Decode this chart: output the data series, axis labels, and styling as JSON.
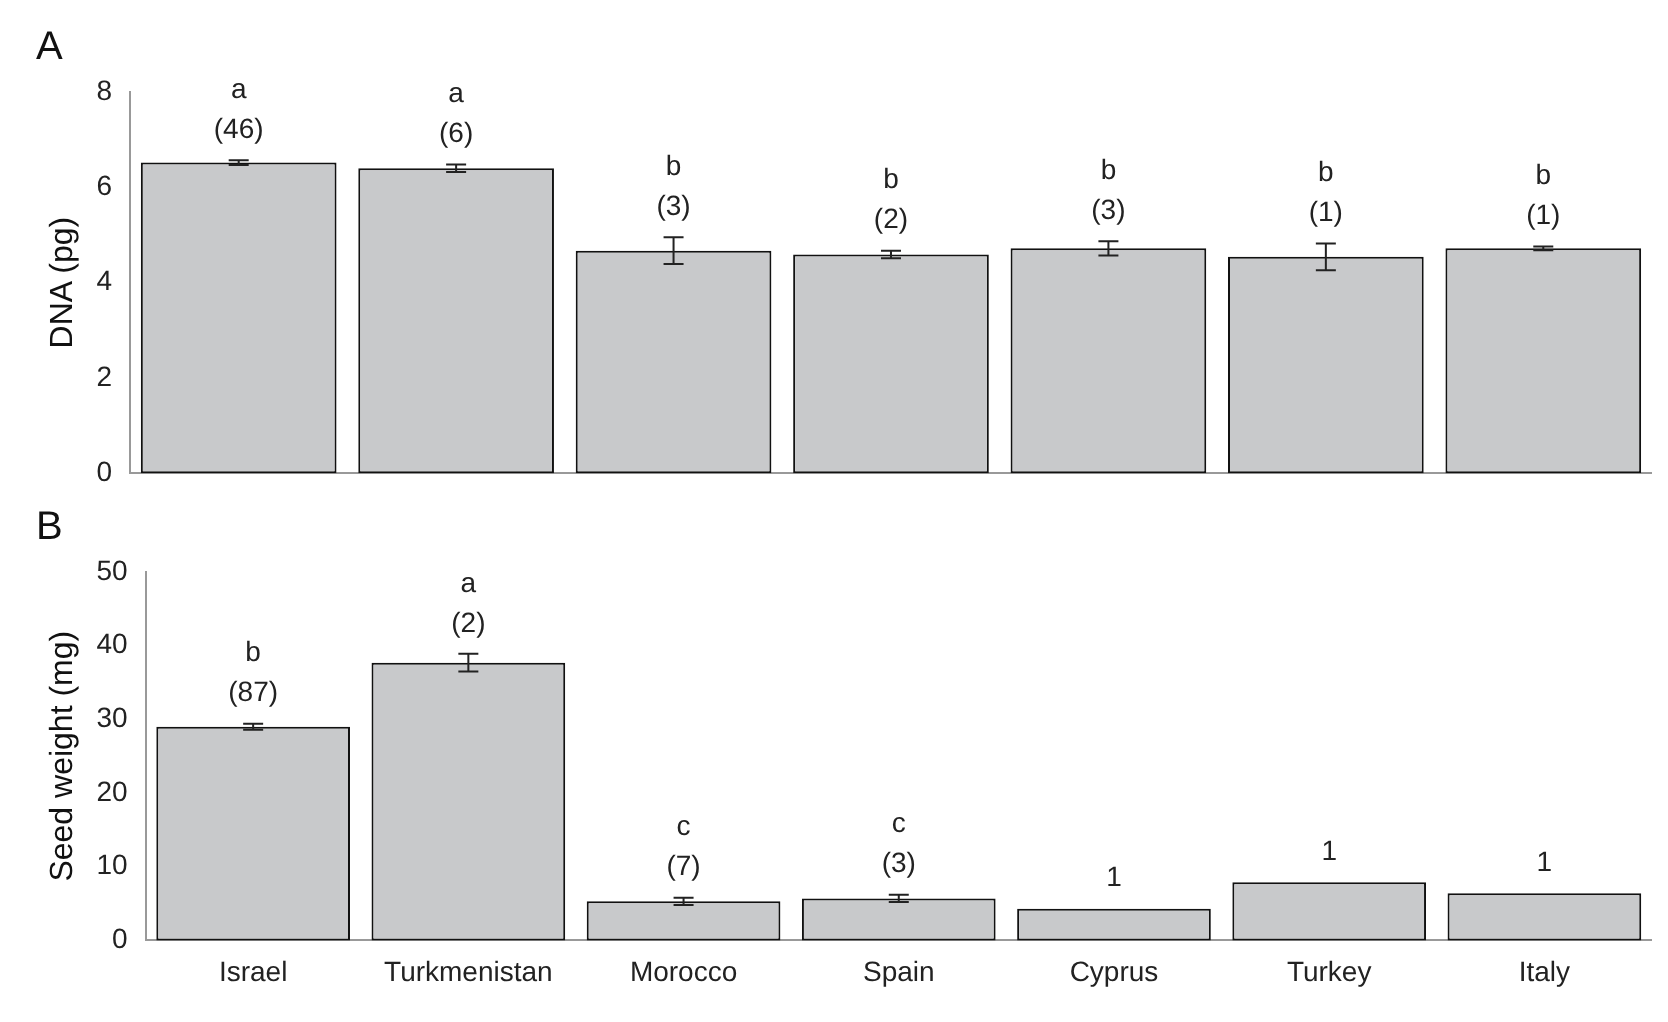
{
  "chart_data": [
    {
      "type": "bar",
      "title": "A",
      "ylabel": "DNA (pg)",
      "categories": [
        null,
        null,
        null,
        null,
        null,
        null,
        null
      ],
      "series": [
        {
          "color": "#c8c9cb",
          "values": [
            6.52,
            6.4,
            4.67,
            4.59,
            4.72,
            4.54,
            4.72
          ],
          "errors": [
            0.05,
            0.08,
            0.28,
            0.08,
            0.15,
            0.28,
            0.04
          ]
        }
      ],
      "annotations": [
        "a\n(46)",
        "a\n(6)",
        "b\n(3)",
        "b\n(2)",
        "b\n(3)",
        "b\n(1)",
        "b\n(1)"
      ],
      "ylim": [
        0,
        8
      ],
      "yticks": [
        0,
        2,
        4,
        6,
        8
      ],
      "grid": false,
      "legend": false,
      "tick_labels": "y"
    },
    {
      "type": "bar",
      "title": "B",
      "ylabel": "Seed weight (mg)",
      "categories": [
        "Israel",
        "Turkmenistan",
        "Morocco",
        "Spain",
        "Cyprus",
        "Turkey",
        "Italy"
      ],
      "series": [
        {
          "color": "#c8c9cb",
          "values": [
            29.0,
            37.7,
            5.3,
            5.7,
            4.3,
            7.9,
            6.4
          ],
          "errors": [
            0.4,
            1.2,
            0.5,
            0.5,
            null,
            null,
            null
          ]
        }
      ],
      "annotations": [
        "b\n(87)",
        "a\n(2)",
        "c\n(7)",
        "c\n(3)",
        "1",
        "1",
        "1"
      ],
      "ylim": [
        0,
        50
      ],
      "yticks": [
        0,
        10,
        20,
        30,
        40,
        50
      ],
      "grid": false,
      "legend": false
    }
  ]
}
